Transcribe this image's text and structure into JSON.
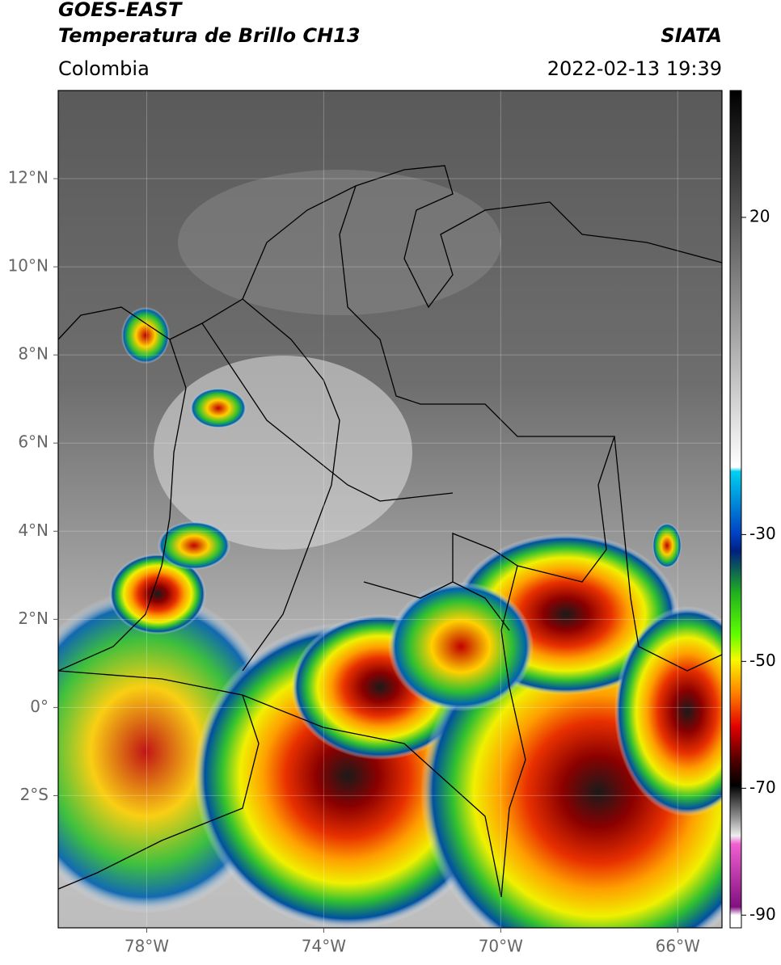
{
  "header": {
    "satellite": "GOES-EAST",
    "product": "Temperatura de Brillo CH13",
    "source": "SIATA",
    "region": "Colombia",
    "datetime": "2022-02-13 19:39"
  },
  "map": {
    "xlim": [
      -80,
      -65
    ],
    "ylim": [
      -5,
      14
    ],
    "xticks": [
      {
        "value": -78,
        "label": "78°W"
      },
      {
        "value": -74,
        "label": "74°W"
      },
      {
        "value": -70,
        "label": "70°W"
      },
      {
        "value": -66,
        "label": "66°W"
      }
    ],
    "yticks": [
      {
        "value": 12,
        "label": "12°N"
      },
      {
        "value": 10,
        "label": "10°N"
      },
      {
        "value": 8,
        "label": "8°N"
      },
      {
        "value": 6,
        "label": "6°N"
      },
      {
        "value": 4,
        "label": "4°N"
      },
      {
        "value": 2,
        "label": "2°N"
      },
      {
        "value": 0,
        "label": "0°"
      },
      {
        "value": -2,
        "label": "2°S"
      }
    ]
  },
  "colorbar": {
    "lim": [
      -92,
      40
    ],
    "ticks": [
      20,
      -30,
      -50,
      -70,
      -90
    ]
  }
}
